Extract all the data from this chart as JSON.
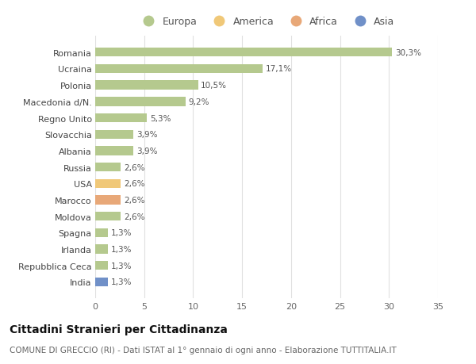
{
  "countries": [
    "Romania",
    "Ucraina",
    "Polonia",
    "Macedonia d/N.",
    "Regno Unito",
    "Slovacchia",
    "Albania",
    "Russia",
    "USA",
    "Marocco",
    "Moldova",
    "Spagna",
    "Irlanda",
    "Repubblica Ceca",
    "India"
  ],
  "values": [
    30.3,
    17.1,
    10.5,
    9.2,
    5.3,
    3.9,
    3.9,
    2.6,
    2.6,
    2.6,
    2.6,
    1.3,
    1.3,
    1.3,
    1.3
  ],
  "labels": [
    "30,3%",
    "17,1%",
    "10,5%",
    "9,2%",
    "5,3%",
    "3,9%",
    "3,9%",
    "2,6%",
    "2,6%",
    "2,6%",
    "2,6%",
    "1,3%",
    "1,3%",
    "1,3%",
    "1,3%"
  ],
  "categories": [
    "Europa",
    "Europa",
    "Europa",
    "Europa",
    "Europa",
    "Europa",
    "Europa",
    "Europa",
    "America",
    "Africa",
    "Europa",
    "Europa",
    "Europa",
    "Europa",
    "Asia"
  ],
  "colors": {
    "Europa": "#b5c98e",
    "America": "#f0c878",
    "Africa": "#e8a878",
    "Asia": "#7090c8"
  },
  "legend_labels": [
    "Europa",
    "America",
    "Africa",
    "Asia"
  ],
  "legend_colors": [
    "#b5c98e",
    "#f0c878",
    "#e8a878",
    "#7090c8"
  ],
  "title": "Cittadini Stranieri per Cittadinanza",
  "subtitle": "COMUNE DI GRECCIO (RI) - Dati ISTAT al 1° gennaio di ogni anno - Elaborazione TUTTITALIA.IT",
  "xlim": [
    0,
    35
  ],
  "xticks": [
    0,
    5,
    10,
    15,
    20,
    25,
    30,
    35
  ],
  "bg_color": "#ffffff",
  "grid_color": "#e0e0e0",
  "bar_height": 0.55,
  "label_fontsize": 7.5,
  "tick_fontsize": 8.0,
  "legend_fontsize": 9.0,
  "title_fontsize": 10,
  "subtitle_fontsize": 7.5
}
